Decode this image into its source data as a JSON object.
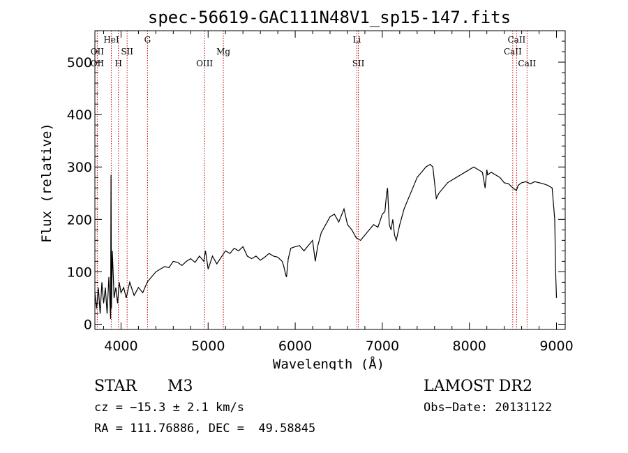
{
  "chart_data": {
    "type": "line",
    "title": "spec-56619-GAC111N48V1_sp15-147.fits",
    "xlabel": "Wavelength (Å)",
    "ylabel": "Flux (relative)",
    "xlim": [
      3700,
      9100
    ],
    "ylim": [
      -10,
      560
    ],
    "x_ticks": [
      4000,
      5000,
      6000,
      7000,
      8000,
      9000
    ],
    "x_tick_labels": [
      "4000",
      "5000",
      "6000",
      "7000",
      "8000",
      "9000"
    ],
    "y_ticks": [
      0,
      100,
      200,
      300,
      400,
      500
    ],
    "y_tick_labels": [
      "0",
      "100",
      "200",
      "300",
      "400",
      "500"
    ],
    "grid": false,
    "series": [
      {
        "x": [
          3700,
          3720,
          3740,
          3760,
          3780,
          3800,
          3820,
          3840,
          3860,
          3880,
          3885,
          3890,
          3900,
          3920,
          3940,
          3960,
          3980,
          4000,
          4030,
          4060,
          4100,
          4150,
          4200,
          4250,
          4300,
          4350,
          4400,
          4450,
          4500,
          4550,
          4600,
          4650,
          4700,
          4750,
          4800,
          4850,
          4900,
          4950,
          4970,
          5000,
          5050,
          5100,
          5150,
          5200,
          5250,
          5300,
          5350,
          5400,
          5450,
          5500,
          5550,
          5600,
          5650,
          5700,
          5750,
          5800,
          5850,
          5870,
          5890,
          5900,
          5920,
          5950,
          6000,
          6050,
          6100,
          6150,
          6200,
          6230,
          6260,
          6300,
          6350,
          6400,
          6450,
          6500,
          6560,
          6600,
          6650,
          6700,
          6750,
          6800,
          6850,
          6900,
          6950,
          7000,
          7030,
          7050,
          7060,
          7080,
          7100,
          7120,
          7140,
          7160,
          7200,
          7250,
          7300,
          7350,
          7400,
          7450,
          7500,
          7550,
          7580,
          7600,
          7620,
          7650,
          7700,
          7750,
          7800,
          7850,
          7900,
          7950,
          8000,
          8050,
          8100,
          8150,
          8180,
          8200,
          8210,
          8250,
          8300,
          8350,
          8400,
          8450,
          8500,
          8540,
          8560,
          8600,
          8650,
          8700,
          8750,
          8800,
          8850,
          8900,
          8950,
          8980,
          8990,
          9000
        ],
        "values": [
          60,
          30,
          70,
          20,
          80,
          40,
          70,
          20,
          90,
          10,
          285,
          30,
          140,
          50,
          70,
          40,
          80,
          60,
          70,
          50,
          80,
          55,
          70,
          60,
          80,
          90,
          100,
          105,
          110,
          108,
          120,
          118,
          112,
          120,
          125,
          118,
          130,
          120,
          140,
          105,
          130,
          115,
          128,
          140,
          135,
          145,
          140,
          148,
          130,
          125,
          130,
          122,
          128,
          135,
          130,
          128,
          120,
          110,
          95,
          90,
          125,
          145,
          148,
          150,
          140,
          150,
          160,
          120,
          150,
          175,
          190,
          205,
          210,
          195,
          220,
          190,
          180,
          165,
          160,
          170,
          180,
          190,
          185,
          210,
          215,
          250,
          260,
          190,
          180,
          200,
          170,
          160,
          190,
          220,
          240,
          260,
          280,
          290,
          300,
          305,
          300,
          270,
          240,
          250,
          260,
          270,
          275,
          280,
          285,
          290,
          295,
          300,
          295,
          290,
          260,
          295,
          285,
          290,
          285,
          280,
          270,
          268,
          260,
          255,
          265,
          270,
          272,
          268,
          272,
          270,
          268,
          265,
          260,
          200,
          100,
          50
        ]
      }
    ],
    "spectral_lines": [
      {
        "label": "OII",
        "x": 3727,
        "row": 2
      },
      {
        "label": "OII",
        "x": 3727,
        "row": 3
      },
      {
        "label": "HeI",
        "x": 3889,
        "row": 1
      },
      {
        "label": "H",
        "x": 3970,
        "row": 3
      },
      {
        "label": "SII",
        "x": 4070,
        "row": 2
      },
      {
        "label": "G",
        "x": 4304,
        "row": 1
      },
      {
        "label": "OIII",
        "x": 4959,
        "row": 3
      },
      {
        "label": "Mg",
        "x": 5175,
        "row": 2
      },
      {
        "label": "Li",
        "x": 6708,
        "row": 1
      },
      {
        "label": "SII",
        "x": 6725,
        "row": 3
      },
      {
        "label": "CaII",
        "x": 8498,
        "row": 2
      },
      {
        "label": "CaII",
        "x": 8542,
        "row": 1
      },
      {
        "label": "CaII",
        "x": 8662,
        "row": 3
      }
    ],
    "colors": {
      "spectrum": "#000000",
      "lines": "#c00000"
    }
  },
  "info": {
    "object_type": "STAR",
    "subclass": "M3",
    "survey": "LAMOST DR2",
    "redshift": "cz = −15.3 ± 2.1 km/s",
    "obs_date": "Obs−Date: 20131122",
    "coords": "RA = 111.76886, DEC =  49.58845"
  }
}
